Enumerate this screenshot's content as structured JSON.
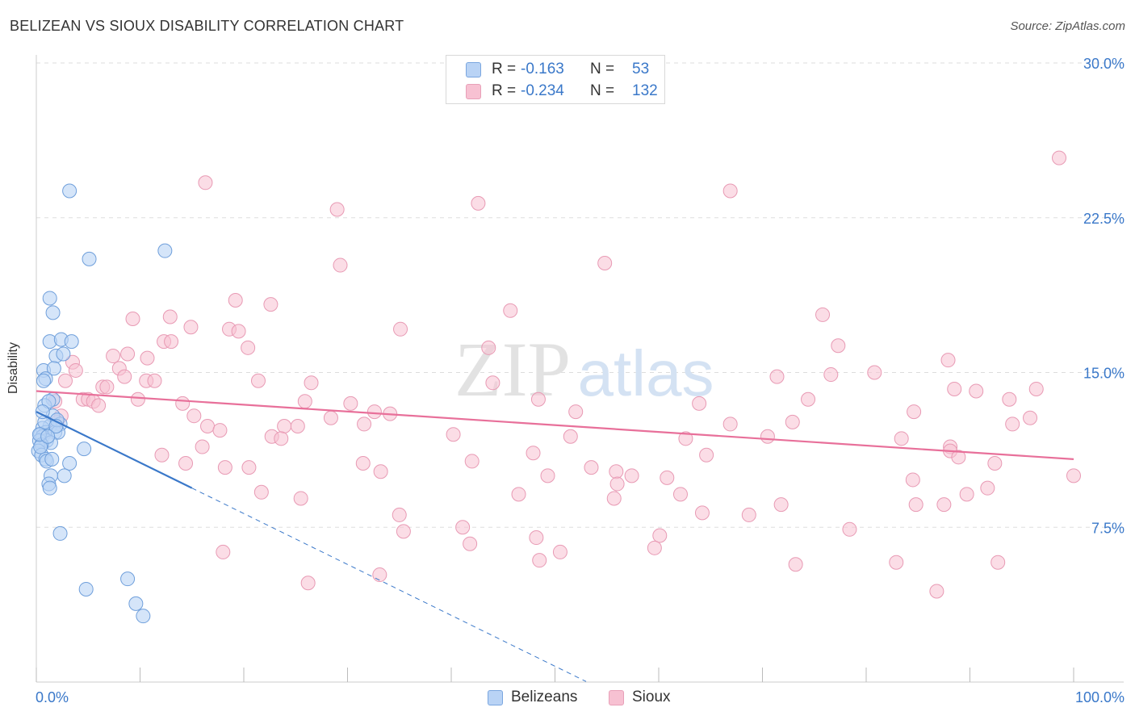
{
  "title": "BELIZEAN VS SIOUX DISABILITY CORRELATION CHART",
  "source": "Source: ZipAtlas.com",
  "watermark": {
    "zip": "ZIP",
    "atlas": "atlas"
  },
  "colors": {
    "blue": "#3a78c9",
    "blue_fill": "#b9d3f5",
    "pink": "#e8709a",
    "pink_fill": "#f7c1d2",
    "grid": "#dddddd",
    "tick_text": "#3a78c9"
  },
  "legend": {
    "rows": [
      {
        "r_label": "R =",
        "r_value": "-0.163",
        "n_label": "N =",
        "n_value": "53"
      },
      {
        "r_label": "R =",
        "r_value": "-0.234",
        "n_label": "N =",
        "n_value": "132"
      }
    ]
  },
  "bottom_legend": [
    "Belizeans",
    "Sioux"
  ],
  "chart_data": {
    "type": "scatter",
    "title": "BELIZEAN VS SIOUX DISABILITY CORRELATION CHART",
    "xlabel": "",
    "ylabel": "Disability",
    "xlim": [
      0,
      100
    ],
    "ylim": [
      0,
      30
    ],
    "x_tick_labels": [
      "0.0%",
      "100.0%"
    ],
    "y_ticks": [
      7.5,
      15.0,
      22.5,
      30.0
    ],
    "y_tick_labels": [
      "7.5%",
      "15.0%",
      "22.5%",
      "30.0%"
    ],
    "grid": true,
    "legend_placement": "top-center",
    "series": [
      {
        "name": "Belizeans",
        "color": "#3a78c9",
        "trend": {
          "x0": 0,
          "y0": 13.1,
          "x1": 15,
          "y1": 9.4,
          "dash_to_x": 53
        },
        "points": [
          [
            3.2,
            23.8
          ],
          [
            5.1,
            20.5
          ],
          [
            12.4,
            20.9
          ],
          [
            1.3,
            18.6
          ],
          [
            1.6,
            17.9
          ],
          [
            1.3,
            16.5
          ],
          [
            2.4,
            16.6
          ],
          [
            3.4,
            16.5
          ],
          [
            1.9,
            15.8
          ],
          [
            2.6,
            15.9
          ],
          [
            0.7,
            15.1
          ],
          [
            1.7,
            15.2
          ],
          [
            0.9,
            14.7
          ],
          [
            0.7,
            14.6
          ],
          [
            1.6,
            13.7
          ],
          [
            0.8,
            13.4
          ],
          [
            1.2,
            13.6
          ],
          [
            1.6,
            12.9
          ],
          [
            2.3,
            12.5
          ],
          [
            1.3,
            12.4
          ],
          [
            0.6,
            12.3
          ],
          [
            0.9,
            12.1
          ],
          [
            1.8,
            12.1
          ],
          [
            2.1,
            12.1
          ],
          [
            0.4,
            12.0
          ],
          [
            0.6,
            11.9
          ],
          [
            1.0,
            11.7
          ],
          [
            1.4,
            11.6
          ],
          [
            0.3,
            11.7
          ],
          [
            0.5,
            11.5
          ],
          [
            0.2,
            11.2
          ],
          [
            0.5,
            11.0
          ],
          [
            0.9,
            10.8
          ],
          [
            1.0,
            10.7
          ],
          [
            3.2,
            10.6
          ],
          [
            4.6,
            11.3
          ],
          [
            1.4,
            10.0
          ],
          [
            2.7,
            10.0
          ],
          [
            1.2,
            9.6
          ],
          [
            1.3,
            9.4
          ],
          [
            2.3,
            7.2
          ],
          [
            4.8,
            4.5
          ],
          [
            8.8,
            5.0
          ],
          [
            9.6,
            3.8
          ],
          [
            10.3,
            3.2
          ],
          [
            1.5,
            10.8
          ],
          [
            0.8,
            12.6
          ],
          [
            2.0,
            12.7
          ],
          [
            0.6,
            13.1
          ],
          [
            0.4,
            11.4
          ],
          [
            1.9,
            12.4
          ],
          [
            0.3,
            12.0
          ],
          [
            1.1,
            11.9
          ]
        ]
      },
      {
        "name": "Sioux",
        "color": "#e8709a",
        "trend": {
          "x0": 0,
          "y0": 14.1,
          "x1": 100,
          "y1": 10.8
        },
        "points": [
          [
            16.3,
            24.2
          ],
          [
            29.0,
            22.9
          ],
          [
            42.6,
            23.2
          ],
          [
            66.9,
            23.8
          ],
          [
            98.6,
            25.4
          ],
          [
            29.3,
            20.2
          ],
          [
            54.8,
            20.3
          ],
          [
            19.2,
            18.5
          ],
          [
            22.6,
            18.3
          ],
          [
            45.7,
            18.0
          ],
          [
            75.8,
            17.8
          ],
          [
            9.3,
            17.6
          ],
          [
            12.9,
            17.7
          ],
          [
            14.9,
            17.2
          ],
          [
            18.6,
            17.1
          ],
          [
            19.5,
            17.0
          ],
          [
            35.1,
            17.1
          ],
          [
            12.3,
            16.5
          ],
          [
            13.0,
            16.5
          ],
          [
            20.4,
            16.2
          ],
          [
            43.6,
            16.2
          ],
          [
            77.3,
            16.3
          ],
          [
            7.4,
            15.8
          ],
          [
            8.8,
            15.9
          ],
          [
            10.7,
            15.7
          ],
          [
            3.5,
            15.5
          ],
          [
            3.8,
            15.1
          ],
          [
            8.0,
            15.2
          ],
          [
            8.5,
            14.8
          ],
          [
            10.6,
            14.6
          ],
          [
            11.4,
            14.6
          ],
          [
            21.4,
            14.6
          ],
          [
            26.5,
            14.5
          ],
          [
            44.0,
            14.5
          ],
          [
            71.4,
            14.8
          ],
          [
            76.6,
            14.9
          ],
          [
            80.8,
            15.0
          ],
          [
            87.9,
            15.6
          ],
          [
            6.4,
            14.3
          ],
          [
            6.8,
            14.3
          ],
          [
            2.8,
            14.6
          ],
          [
            88.5,
            14.2
          ],
          [
            90.6,
            14.1
          ],
          [
            96.4,
            14.2
          ],
          [
            4.5,
            13.7
          ],
          [
            5.0,
            13.7
          ],
          [
            5.5,
            13.6
          ],
          [
            6.0,
            13.4
          ],
          [
            9.8,
            13.7
          ],
          [
            14.1,
            13.5
          ],
          [
            25.9,
            13.6
          ],
          [
            30.3,
            13.5
          ],
          [
            48.4,
            13.7
          ],
          [
            63.9,
            13.5
          ],
          [
            74.4,
            13.7
          ],
          [
            93.8,
            13.7
          ],
          [
            1.8,
            13.6
          ],
          [
            2.4,
            12.9
          ],
          [
            15.2,
            12.9
          ],
          [
            28.4,
            12.8
          ],
          [
            32.6,
            13.1
          ],
          [
            34.1,
            13.0
          ],
          [
            52.0,
            13.1
          ],
          [
            84.6,
            13.1
          ],
          [
            95.8,
            12.8
          ],
          [
            16.5,
            12.4
          ],
          [
            17.7,
            12.2
          ],
          [
            23.9,
            12.4
          ],
          [
            25.2,
            12.4
          ],
          [
            31.6,
            12.5
          ],
          [
            66.9,
            12.5
          ],
          [
            72.9,
            12.6
          ],
          [
            94.1,
            12.5
          ],
          [
            2.0,
            12.6
          ],
          [
            22.7,
            11.9
          ],
          [
            23.6,
            11.8
          ],
          [
            40.2,
            12.0
          ],
          [
            51.5,
            11.9
          ],
          [
            62.6,
            11.8
          ],
          [
            70.5,
            11.9
          ],
          [
            83.4,
            11.8
          ],
          [
            88.1,
            11.4
          ],
          [
            16.0,
            11.4
          ],
          [
            88.1,
            11.2
          ],
          [
            88.9,
            10.9
          ],
          [
            47.9,
            11.1
          ],
          [
            64.6,
            11.0
          ],
          [
            12.1,
            11.0
          ],
          [
            14.4,
            10.6
          ],
          [
            18.2,
            10.4
          ],
          [
            20.5,
            10.4
          ],
          [
            31.5,
            10.6
          ],
          [
            33.2,
            10.2
          ],
          [
            42.0,
            10.7
          ],
          [
            53.5,
            10.4
          ],
          [
            55.9,
            10.2
          ],
          [
            57.4,
            10.0
          ],
          [
            60.8,
            9.9
          ],
          [
            49.3,
            10.0
          ],
          [
            56.0,
            9.6
          ],
          [
            84.5,
            9.8
          ],
          [
            92.4,
            10.6
          ],
          [
            100.0,
            10.0
          ],
          [
            21.7,
            9.2
          ],
          [
            25.5,
            8.9
          ],
          [
            46.5,
            9.1
          ],
          [
            55.7,
            8.9
          ],
          [
            62.1,
            9.1
          ],
          [
            71.8,
            8.6
          ],
          [
            84.8,
            8.6
          ],
          [
            89.7,
            9.1
          ],
          [
            91.7,
            9.4
          ],
          [
            87.5,
            8.6
          ],
          [
            35.0,
            8.1
          ],
          [
            64.2,
            8.2
          ],
          [
            68.7,
            8.1
          ],
          [
            35.4,
            7.3
          ],
          [
            41.1,
            7.5
          ],
          [
            48.2,
            7.0
          ],
          [
            60.1,
            7.1
          ],
          [
            78.4,
            7.4
          ],
          [
            18.0,
            6.3
          ],
          [
            41.8,
            6.7
          ],
          [
            48.5,
            5.9
          ],
          [
            50.5,
            6.3
          ],
          [
            59.6,
            6.5
          ],
          [
            73.2,
            5.7
          ],
          [
            82.9,
            5.8
          ],
          [
            86.8,
            4.4
          ],
          [
            92.7,
            5.8
          ],
          [
            26.2,
            4.8
          ],
          [
            33.1,
            5.2
          ]
        ]
      }
    ]
  }
}
